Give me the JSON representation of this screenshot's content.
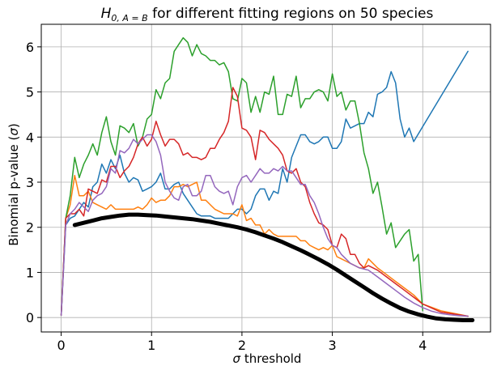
{
  "chart_data": {
    "type": "line",
    "title_main": "H",
    "title_sub": "0, A = B",
    "title_rest": " for different fitting regions on 50 species",
    "xlabel_symbol": "σ",
    "xlabel_rest": " threshold",
    "ylabel_main": "Binomial p-value (",
    "ylabel_symbol": "σ",
    "ylabel_end": ")",
    "xlim": [
      -0.22,
      4.75
    ],
    "ylim": [
      -0.32,
      6.5
    ],
    "xticks": [
      0,
      1,
      2,
      3,
      4
    ],
    "yticks": [
      0,
      1,
      2,
      3,
      4,
      5,
      6
    ],
    "grid": true,
    "series": [
      {
        "color": "#1f77b4",
        "width": 1.5,
        "x": [
          0.0,
          0.05,
          0.1,
          0.15,
          0.2,
          0.25,
          0.3,
          0.35,
          0.4,
          0.45,
          0.5,
          0.55,
          0.6,
          0.65,
          0.7,
          0.75,
          0.8,
          0.85,
          0.9,
          0.95,
          1.0,
          1.05,
          1.1,
          1.15,
          1.2,
          1.25,
          1.3,
          1.35,
          1.4,
          1.45,
          1.5,
          1.55,
          1.6,
          1.65,
          1.7,
          1.75,
          1.8,
          1.85,
          1.9,
          1.95,
          2.0,
          2.05,
          2.1,
          2.15,
          2.2,
          2.25,
          2.3,
          2.35,
          2.4,
          2.45,
          2.5,
          2.55,
          2.6,
          2.65,
          2.7,
          2.75,
          2.8,
          2.85,
          2.9,
          2.95,
          3.0,
          3.05,
          3.1,
          3.15,
          3.2,
          3.25,
          3.3,
          3.35,
          3.4,
          3.45,
          3.5,
          3.55,
          3.6,
          3.65,
          3.7,
          3.75,
          3.8,
          3.85,
          3.9,
          4.5
        ],
        "y": [
          0.05,
          2.05,
          2.2,
          2.25,
          2.4,
          2.55,
          2.45,
          2.9,
          3.0,
          3.4,
          3.2,
          3.5,
          3.3,
          3.6,
          3.2,
          3.0,
          3.1,
          3.05,
          2.8,
          2.85,
          2.9,
          3.0,
          3.2,
          2.85,
          2.85,
          2.95,
          3.0,
          2.75,
          2.6,
          2.45,
          2.3,
          2.25,
          2.25,
          2.25,
          2.2,
          2.2,
          2.2,
          2.2,
          2.3,
          2.4,
          2.4,
          2.3,
          2.4,
          2.7,
          2.85,
          2.85,
          2.6,
          2.8,
          2.75,
          3.3,
          3.0,
          3.55,
          3.8,
          4.05,
          4.05,
          3.9,
          3.85,
          3.9,
          4.0,
          4.0,
          3.75,
          3.75,
          3.9,
          4.4,
          4.2,
          4.25,
          4.3,
          4.3,
          4.55,
          4.45,
          4.95,
          5.0,
          5.1,
          5.45,
          5.2,
          4.4,
          4.0,
          4.2,
          3.9,
          5.9
        ]
      },
      {
        "color": "#ff7f0e",
        "width": 1.5,
        "x": [
          0.0,
          0.05,
          0.1,
          0.15,
          0.2,
          0.25,
          0.3,
          0.35,
          0.4,
          0.45,
          0.5,
          0.55,
          0.6,
          0.65,
          0.7,
          0.75,
          0.8,
          0.85,
          0.9,
          0.95,
          1.0,
          1.05,
          1.1,
          1.15,
          1.2,
          1.25,
          1.3,
          1.35,
          1.4,
          1.45,
          1.5,
          1.55,
          1.6,
          1.65,
          1.7,
          1.75,
          1.8,
          1.85,
          1.9,
          1.95,
          2.0,
          2.05,
          2.1,
          2.15,
          2.2,
          2.25,
          2.3,
          2.35,
          2.4,
          2.45,
          2.5,
          2.55,
          2.6,
          2.65,
          2.7,
          2.75,
          2.8,
          2.85,
          2.9,
          2.95,
          3.0,
          3.05,
          3.1,
          3.15,
          3.2,
          3.25,
          3.3,
          3.35,
          3.4,
          3.45,
          3.5,
          3.6,
          3.7,
          3.8,
          3.9,
          4.0,
          4.2,
          4.5
        ],
        "y": [
          0.05,
          2.2,
          2.5,
          3.15,
          2.7,
          2.7,
          2.8,
          2.55,
          2.5,
          2.45,
          2.4,
          2.5,
          2.4,
          2.4,
          2.4,
          2.4,
          2.4,
          2.45,
          2.4,
          2.5,
          2.65,
          2.55,
          2.6,
          2.6,
          2.7,
          2.9,
          2.9,
          2.95,
          2.9,
          2.95,
          3.0,
          2.6,
          2.6,
          2.5,
          2.4,
          2.35,
          2.3,
          2.3,
          2.3,
          2.25,
          2.5,
          2.15,
          2.2,
          2.05,
          2.05,
          1.85,
          1.95,
          1.85,
          1.8,
          1.8,
          1.8,
          1.8,
          1.8,
          1.7,
          1.7,
          1.6,
          1.55,
          1.5,
          1.55,
          1.5,
          1.6,
          1.35,
          1.3,
          1.25,
          1.2,
          1.15,
          1.1,
          1.1,
          1.3,
          1.2,
          1.1,
          0.95,
          0.8,
          0.65,
          0.5,
          0.3,
          0.15,
          0.03
        ]
      },
      {
        "color": "#2ca02c",
        "width": 1.5,
        "x": [
          0.0,
          0.05,
          0.1,
          0.15,
          0.2,
          0.25,
          0.3,
          0.35,
          0.4,
          0.45,
          0.5,
          0.55,
          0.6,
          0.65,
          0.7,
          0.75,
          0.8,
          0.85,
          0.9,
          0.95,
          1.0,
          1.05,
          1.1,
          1.15,
          1.2,
          1.25,
          1.3,
          1.35,
          1.4,
          1.45,
          1.5,
          1.55,
          1.6,
          1.65,
          1.7,
          1.75,
          1.8,
          1.85,
          1.9,
          1.95,
          2.0,
          2.05,
          2.1,
          2.15,
          2.2,
          2.25,
          2.3,
          2.35,
          2.4,
          2.45,
          2.5,
          2.55,
          2.6,
          2.65,
          2.7,
          2.75,
          2.8,
          2.85,
          2.9,
          2.95,
          3.0,
          3.05,
          3.1,
          3.15,
          3.2,
          3.25,
          3.3,
          3.35,
          3.4,
          3.45,
          3.5,
          3.55,
          3.6,
          3.65,
          3.7,
          3.75,
          3.8,
          3.85,
          3.9,
          3.95,
          4.0
        ],
        "y": [
          0.05,
          2.2,
          2.7,
          3.55,
          3.1,
          3.4,
          3.6,
          3.85,
          3.6,
          4.1,
          4.45,
          3.9,
          3.6,
          4.25,
          4.2,
          4.1,
          4.3,
          3.8,
          4.0,
          4.4,
          4.5,
          5.05,
          4.85,
          5.2,
          5.3,
          5.9,
          6.05,
          6.2,
          6.1,
          5.8,
          6.05,
          5.85,
          5.8,
          5.7,
          5.7,
          5.6,
          5.65,
          5.45,
          4.85,
          4.8,
          5.3,
          5.2,
          4.55,
          4.9,
          4.55,
          5.0,
          4.95,
          5.35,
          4.5,
          4.5,
          4.95,
          4.9,
          5.35,
          4.65,
          4.85,
          4.85,
          5.0,
          5.05,
          5.0,
          4.8,
          5.4,
          4.9,
          5.0,
          4.6,
          4.8,
          4.8,
          4.3,
          3.65,
          3.3,
          2.75,
          3.0,
          2.45,
          1.85,
          2.1,
          1.55,
          1.7,
          1.85,
          1.95,
          1.25,
          1.4,
          0.15
        ]
      },
      {
        "color": "#d62728",
        "width": 1.5,
        "x": [
          0.0,
          0.05,
          0.1,
          0.15,
          0.2,
          0.25,
          0.3,
          0.35,
          0.4,
          0.45,
          0.5,
          0.55,
          0.6,
          0.65,
          0.7,
          0.75,
          0.8,
          0.85,
          0.9,
          0.95,
          1.0,
          1.05,
          1.1,
          1.15,
          1.2,
          1.25,
          1.3,
          1.35,
          1.4,
          1.45,
          1.5,
          1.55,
          1.6,
          1.65,
          1.7,
          1.75,
          1.8,
          1.85,
          1.9,
          1.95,
          2.0,
          2.05,
          2.1,
          2.15,
          2.2,
          2.25,
          2.3,
          2.35,
          2.4,
          2.45,
          2.5,
          2.55,
          2.6,
          2.65,
          2.7,
          2.75,
          2.8,
          2.85,
          2.9,
          2.95,
          3.0,
          3.05,
          3.1,
          3.15,
          3.2,
          3.25,
          3.3,
          3.35,
          3.4,
          3.5,
          3.6,
          3.7,
          3.8,
          3.9,
          4.0,
          4.2,
          4.5
        ],
        "y": [
          0.05,
          2.2,
          2.3,
          2.3,
          2.4,
          2.25,
          2.85,
          2.8,
          2.75,
          3.05,
          3.0,
          3.35,
          3.35,
          3.1,
          3.25,
          3.35,
          3.55,
          3.85,
          4.0,
          3.8,
          3.95,
          4.35,
          4.05,
          3.8,
          3.95,
          3.95,
          3.85,
          3.6,
          3.65,
          3.55,
          3.55,
          3.5,
          3.55,
          3.75,
          3.75,
          3.95,
          4.1,
          4.35,
          5.1,
          4.9,
          4.2,
          4.15,
          4.0,
          3.5,
          4.15,
          4.1,
          3.95,
          3.85,
          3.75,
          3.6,
          3.25,
          3.2,
          3.3,
          3.0,
          2.9,
          2.55,
          2.3,
          2.1,
          2.05,
          1.95,
          1.6,
          1.55,
          1.85,
          1.75,
          1.4,
          1.4,
          1.2,
          1.1,
          1.15,
          1.05,
          0.9,
          0.75,
          0.6,
          0.45,
          0.3,
          0.12,
          0.03
        ]
      },
      {
        "color": "#9467bd",
        "width": 1.5,
        "x": [
          0.0,
          0.05,
          0.1,
          0.15,
          0.2,
          0.25,
          0.3,
          0.35,
          0.4,
          0.45,
          0.5,
          0.55,
          0.6,
          0.65,
          0.7,
          0.75,
          0.8,
          0.85,
          0.9,
          0.95,
          1.0,
          1.05,
          1.1,
          1.15,
          1.2,
          1.25,
          1.3,
          1.35,
          1.4,
          1.45,
          1.5,
          1.55,
          1.6,
          1.65,
          1.7,
          1.75,
          1.8,
          1.85,
          1.9,
          1.95,
          2.0,
          2.05,
          2.1,
          2.15,
          2.2,
          2.25,
          2.3,
          2.35,
          2.4,
          2.45,
          2.5,
          2.55,
          2.6,
          2.65,
          2.7,
          2.75,
          2.8,
          2.85,
          2.9,
          2.95,
          3.0,
          3.05,
          3.1,
          3.15,
          3.2,
          3.3,
          3.4,
          3.5,
          3.6,
          3.7,
          3.8,
          3.9,
          4.0,
          4.1,
          4.2,
          4.3,
          4.4,
          4.5
        ],
        "y": [
          0.05,
          2.05,
          2.3,
          2.4,
          2.55,
          2.45,
          2.35,
          2.6,
          2.7,
          2.75,
          2.9,
          3.3,
          3.2,
          3.7,
          3.65,
          3.75,
          3.95,
          3.85,
          3.95,
          4.05,
          4.05,
          3.9,
          3.6,
          3.0,
          2.8,
          2.65,
          2.6,
          2.9,
          2.95,
          2.7,
          2.7,
          2.8,
          3.15,
          3.15,
          2.9,
          2.8,
          2.75,
          2.8,
          2.5,
          2.9,
          3.1,
          3.15,
          3.0,
          3.15,
          3.3,
          3.2,
          3.2,
          3.3,
          3.25,
          3.35,
          3.25,
          3.25,
          3.1,
          2.95,
          2.95,
          2.7,
          2.55,
          2.3,
          2.0,
          1.75,
          1.6,
          1.55,
          1.4,
          1.3,
          1.2,
          1.1,
          1.05,
          0.9,
          0.75,
          0.6,
          0.45,
          0.32,
          0.22,
          0.14,
          0.09,
          0.06,
          0.04,
          0.03
        ]
      },
      {
        "color": "#000000",
        "width": 5,
        "x": [
          0.15,
          0.25,
          0.35,
          0.45,
          0.55,
          0.65,
          0.75,
          0.85,
          0.95,
          1.05,
          1.15,
          1.25,
          1.35,
          1.45,
          1.55,
          1.65,
          1.75,
          1.85,
          1.95,
          2.05,
          2.15,
          2.25,
          2.35,
          2.45,
          2.55,
          2.65,
          2.75,
          2.85,
          2.95,
          3.05,
          3.15,
          3.25,
          3.35,
          3.45,
          3.55,
          3.65,
          3.75,
          3.85,
          3.95,
          4.05,
          4.15,
          4.25,
          4.35,
          4.45,
          4.55
        ],
        "y": [
          2.05,
          2.1,
          2.15,
          2.2,
          2.23,
          2.26,
          2.28,
          2.28,
          2.27,
          2.26,
          2.24,
          2.22,
          2.2,
          2.18,
          2.15,
          2.12,
          2.08,
          2.04,
          2.0,
          1.95,
          1.89,
          1.82,
          1.75,
          1.67,
          1.58,
          1.49,
          1.39,
          1.29,
          1.18,
          1.06,
          0.93,
          0.8,
          0.67,
          0.54,
          0.42,
          0.31,
          0.21,
          0.13,
          0.07,
          0.02,
          -0.02,
          -0.04,
          -0.05,
          -0.06,
          -0.06
        ]
      }
    ]
  }
}
